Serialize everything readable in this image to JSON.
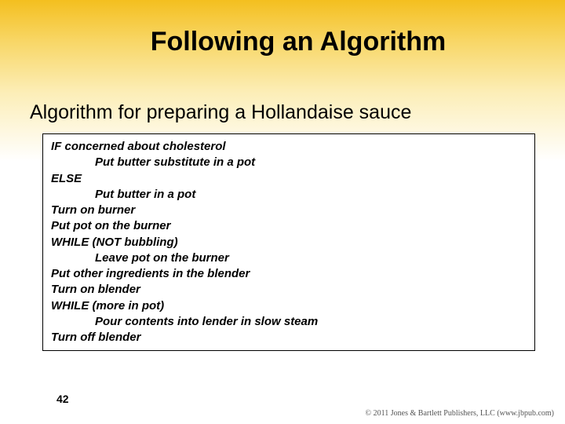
{
  "title": "Following an Algorithm",
  "subtitle": "Algorithm for preparing a Hollandaise sauce",
  "code": {
    "l1": "IF concerned about cholesterol",
    "l2": "Put butter substitute in a pot",
    "l3": "ELSE",
    "l4": "Put butter in a pot",
    "l5": "Turn on burner",
    "l6": "Put pot on the burner",
    "l7": "WHILE (NOT bubbling)",
    "l8": "Leave pot on the burner",
    "l9": "Put other ingredients in the blender",
    "l10": "Turn on blender",
    "l11": "WHILE (more in pot)",
    "l12": "Pour contents into lender in slow steam",
    "l13": "Turn off blender"
  },
  "page_number": "42",
  "footer": "© 2011 Jones & Bartlett Publishers, LLC (www.jbpub.com)"
}
